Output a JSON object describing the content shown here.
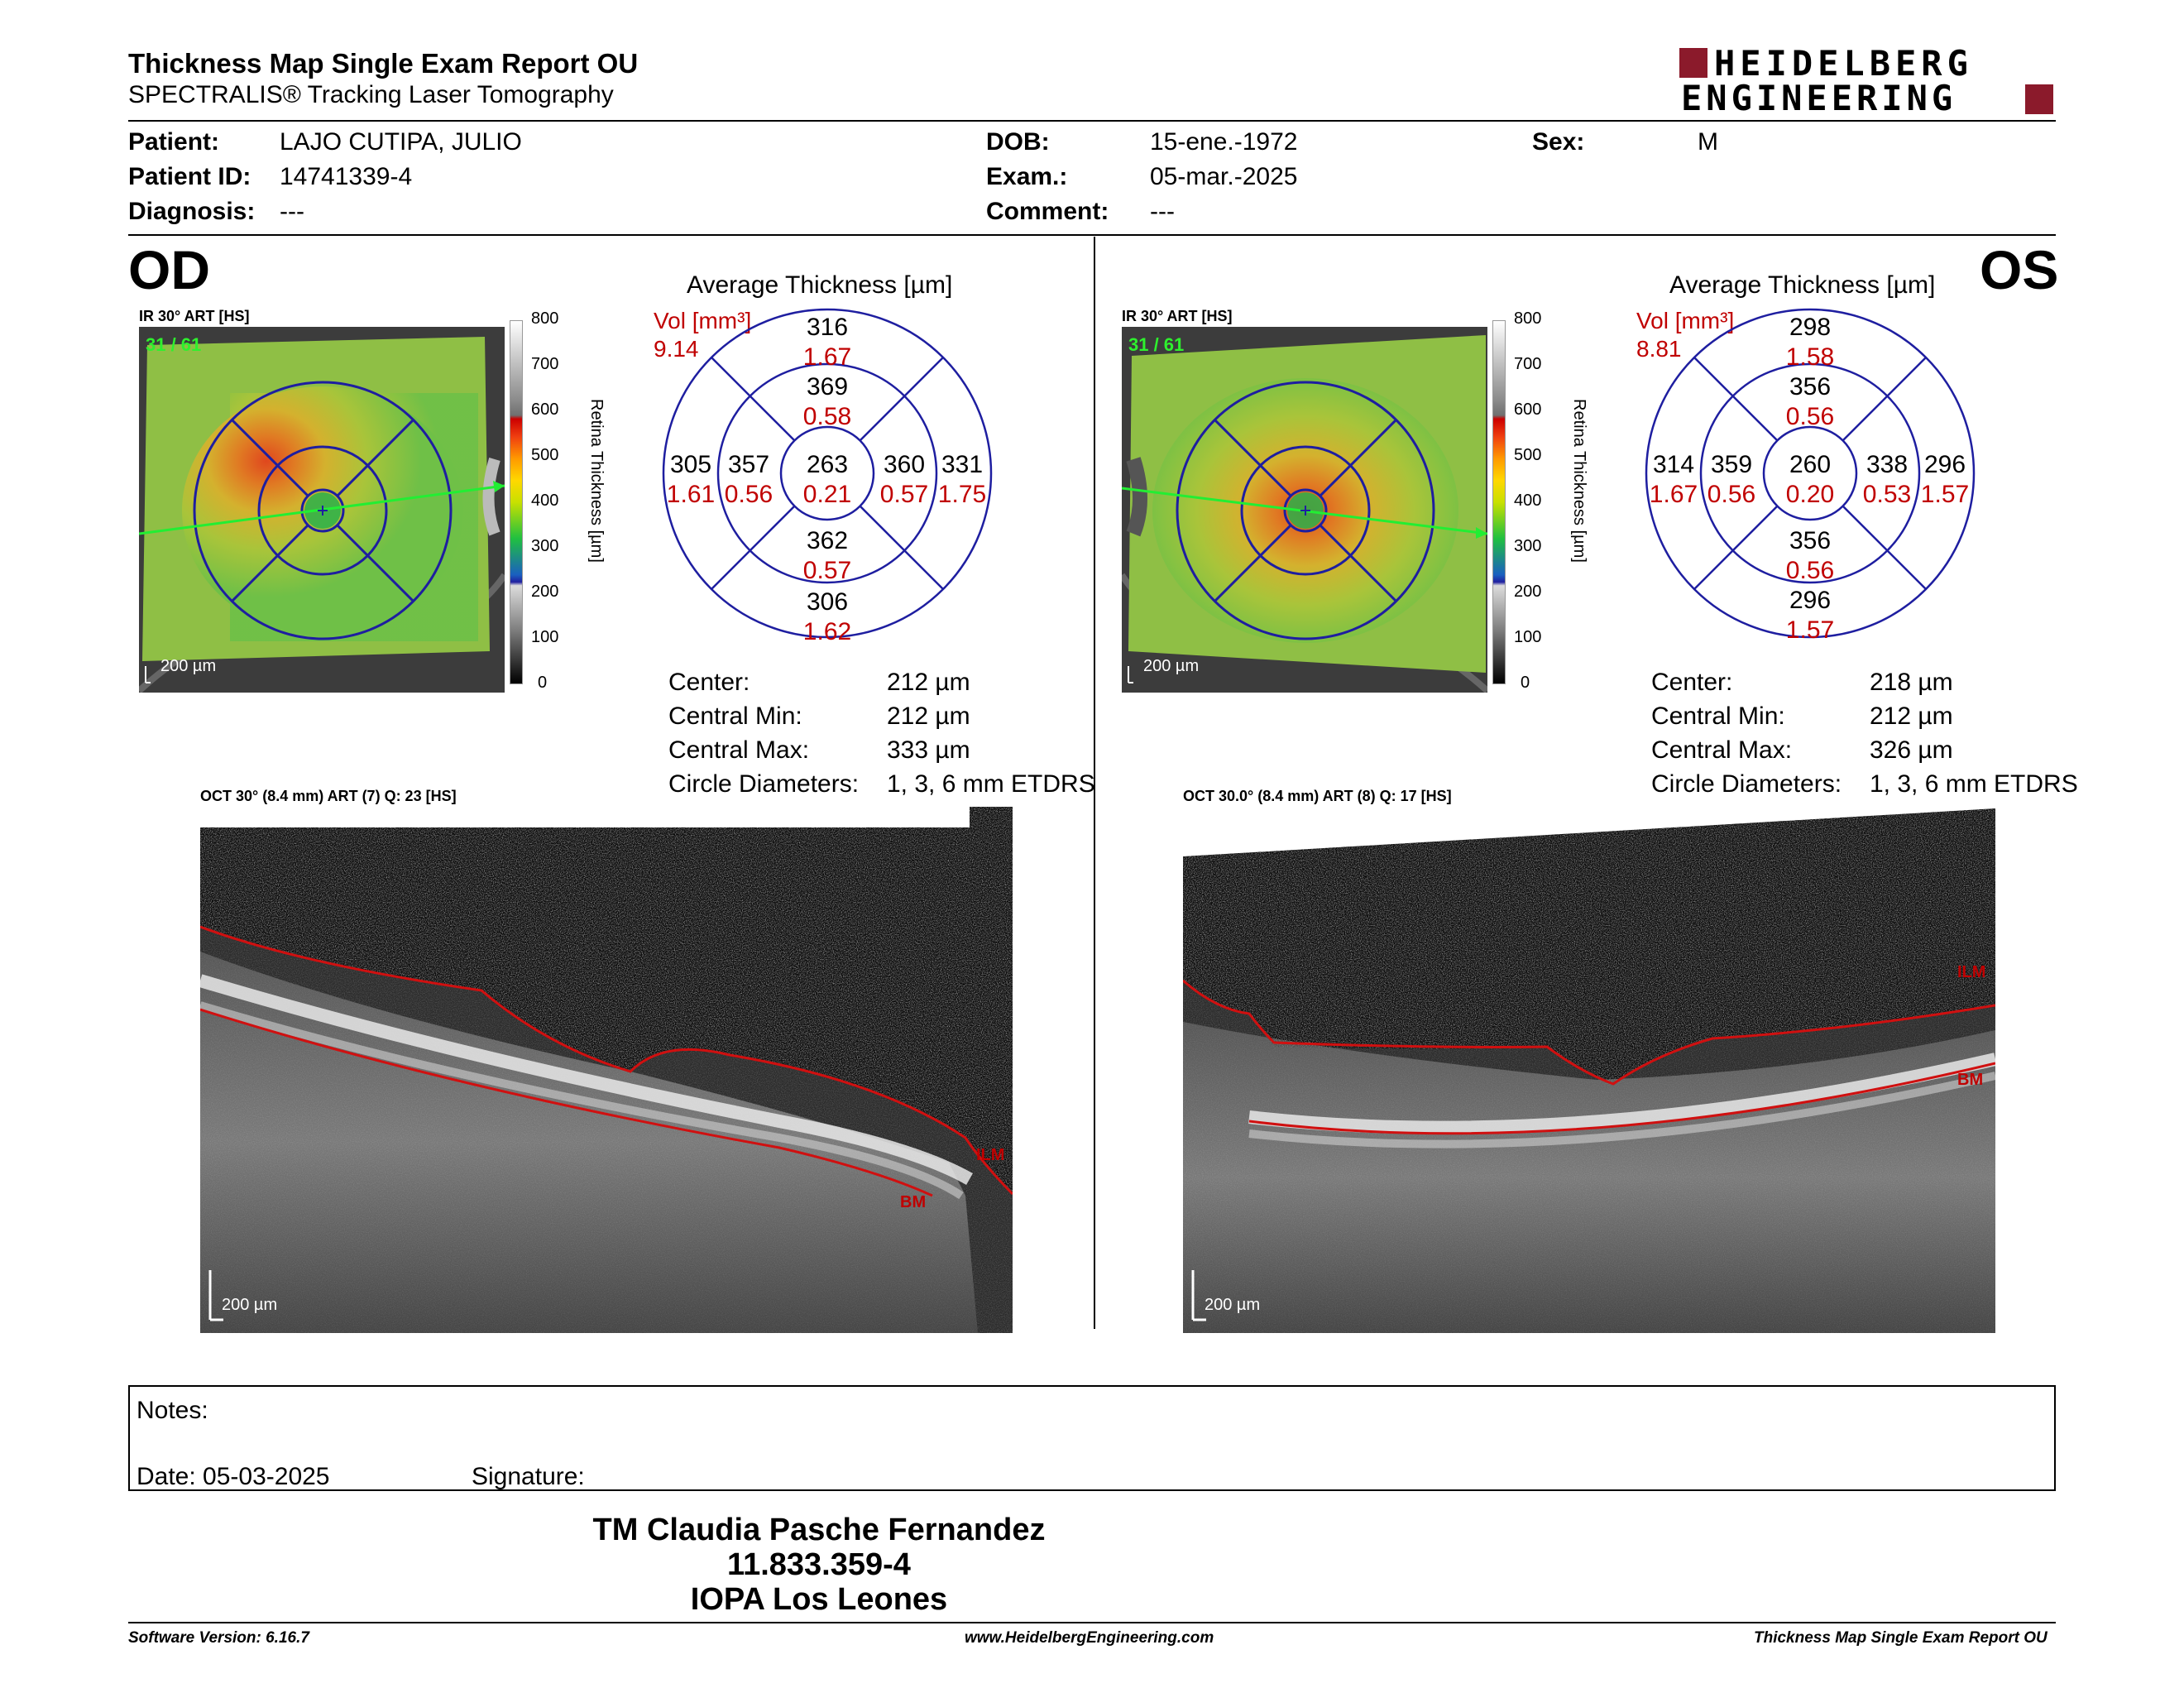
{
  "header": {
    "title": "Thickness Map Single Exam Report OU",
    "subtitle": "SPECTRALIS® Tracking Laser Tomography",
    "logo_line1": "HEIDELBERG",
    "logo_line2": "ENGINEERING"
  },
  "patient": {
    "patient_label": "Patient:",
    "patient_value": "LAJO CUTIPA, JULIO",
    "id_label": "Patient ID:",
    "id_value": "14741339-4",
    "diagnosis_label": "Diagnosis:",
    "diagnosis_value": "---",
    "dob_label": "DOB:",
    "dob_value": "15-ene.-1972",
    "exam_label": "Exam.:",
    "exam_value": "05-mar.-2025",
    "comment_label": "Comment:",
    "comment_value": "---",
    "sex_label": "Sex:",
    "sex_value": "M"
  },
  "scale": {
    "ticks": [
      "800",
      "700",
      "600",
      "500",
      "400",
      "300",
      "200",
      "100",
      "0"
    ],
    "title": "Retina  Thickness [µm]"
  },
  "od": {
    "eye": "OD",
    "ir_label": "IR 30° ART [HS]",
    "slice": "31 / 61",
    "scale_bar": "200 µm",
    "avg_title": "Average Thickness [µm]",
    "vol_label": "Vol [mm³]",
    "vol_value": "9.14",
    "sectors": {
      "outer_sup_t": "316",
      "outer_sup_v": "1.67",
      "inner_sup_t": "369",
      "inner_sup_v": "0.58",
      "outer_left_t": "305",
      "outer_left_v": "1.61",
      "inner_left_t": "357",
      "inner_left_v": "0.56",
      "center_t": "263",
      "center_v": "0.21",
      "inner_right_t": "360",
      "inner_right_v": "0.57",
      "outer_right_t": "331",
      "outer_right_v": "1.75",
      "inner_inf_t": "362",
      "inner_inf_v": "0.57",
      "outer_inf_t": "306",
      "outer_inf_v": "1.62"
    },
    "stats": {
      "center_label": "Center:",
      "center_value": "212 µm",
      "min_label": "Central Min:",
      "min_value": "212 µm",
      "max_label": "Central Max:",
      "max_value": "333 µm",
      "diam_label": "Circle Diameters:",
      "diam_value": "1, 3, 6 mm ETDRS"
    },
    "oct_label": "OCT 30° (8.4 mm) ART (7) Q: 23 [HS]",
    "oct_scale": "200 µm",
    "ilm": "ILM",
    "bm": "BM"
  },
  "os": {
    "eye": "OS",
    "ir_label": "IR 30° ART [HS]",
    "slice": "31 / 61",
    "scale_bar": "200 µm",
    "avg_title": "Average Thickness [µm]",
    "vol_label": "Vol [mm³]",
    "vol_value": "8.81",
    "sectors": {
      "outer_sup_t": "298",
      "outer_sup_v": "1.58",
      "inner_sup_t": "356",
      "inner_sup_v": "0.56",
      "outer_left_t": "314",
      "outer_left_v": "1.67",
      "inner_left_t": "359",
      "inner_left_v": "0.56",
      "center_t": "260",
      "center_v": "0.20",
      "inner_right_t": "338",
      "inner_right_v": "0.53",
      "outer_right_t": "296",
      "outer_right_v": "1.57",
      "inner_inf_t": "356",
      "inner_inf_v": "0.56",
      "outer_inf_t": "296",
      "outer_inf_v": "1.57"
    },
    "stats": {
      "center_label": "Center:",
      "center_value": "218 µm",
      "min_label": "Central Min:",
      "min_value": "212 µm",
      "max_label": "Central Max:",
      "max_value": "326 µm",
      "diam_label": "Circle Diameters:",
      "diam_value": "1, 3, 6 mm ETDRS"
    },
    "oct_label": "OCT 30.0° (8.4 mm) ART (8) Q: 17 [HS]",
    "oct_scale": "200 µm",
    "ilm": "ILM",
    "bm": "BM"
  },
  "notes": {
    "notes_label": "Notes:",
    "date_label": "Date: 05-03-2025",
    "signature_label": "Signature:"
  },
  "signatory": {
    "name": "TM Claudia Pasche Fernandez",
    "id": "11.833.359-4",
    "institution": "IOPA Los Leones"
  },
  "footer": {
    "version": "Software Version: 6.16.7",
    "website": "www.HeidelbergEngineering.com",
    "report": "Thickness Map Single Exam Report OU"
  }
}
